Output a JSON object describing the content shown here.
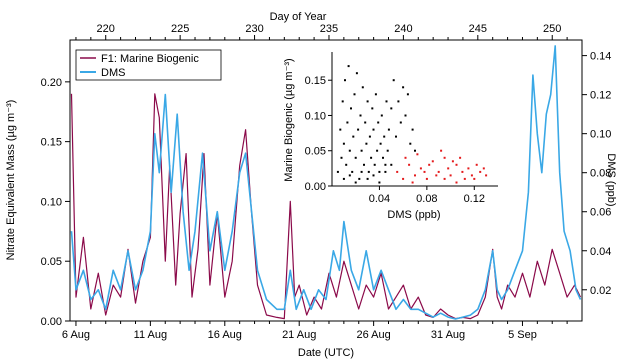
{
  "chart_data": [
    {
      "type": "line",
      "x_bottom_label": "Date (UTC)",
      "x_bottom_ticks": [
        "6 Aug",
        "11 Aug",
        "16 Aug",
        "21 Aug",
        "26 Aug",
        "31 Aug",
        "5 Sep"
      ],
      "x_top_label": "Day of Year",
      "x_top_ticks": [
        220,
        225,
        230,
        235,
        240,
        245,
        250
      ],
      "x_top_range": [
        217.6,
        252.0
      ],
      "ylabel_left": "Nitrate Equivalent Mass (µg m⁻³)",
      "ylim_left": [
        0,
        0.235
      ],
      "yticks_left": [
        "0.00",
        "0.05",
        "0.10",
        "0.15",
        "0.20"
      ],
      "ylabel_right": "DMS (ppb)",
      "ylim_right": [
        0.004,
        0.148
      ],
      "yticks_right": [
        "0.02",
        "0.04",
        "0.06",
        "0.08",
        "0.10",
        "0.12",
        "0.14"
      ],
      "legend_position": "top-left",
      "series": [
        {
          "name": "F1: Marine Biogenic",
          "axis": "left",
          "color": "#8b0a4a",
          "points": [
            [
              217.7,
              0.19
            ],
            [
              218.0,
              0.02
            ],
            [
              218.5,
              0.07
            ],
            [
              219.0,
              0.01
            ],
            [
              219.5,
              0.04
            ],
            [
              220.0,
              0.005
            ],
            [
              220.5,
              0.03
            ],
            [
              221.0,
              0.02
            ],
            [
              221.5,
              0.06
            ],
            [
              222.0,
              0.015
            ],
            [
              222.5,
              0.05
            ],
            [
              223.0,
              0.07
            ],
            [
              223.3,
              0.19
            ],
            [
              223.6,
              0.17
            ],
            [
              224.0,
              0.05
            ],
            [
              224.3,
              0.13
            ],
            [
              224.7,
              0.03
            ],
            [
              225.0,
              0.09
            ],
            [
              225.4,
              0.14
            ],
            [
              225.8,
              0.02
            ],
            [
              226.2,
              0.06
            ],
            [
              226.6,
              0.14
            ],
            [
              227.0,
              0.03
            ],
            [
              227.5,
              0.09
            ],
            [
              228.0,
              0.02
            ],
            [
              228.5,
              0.05
            ],
            [
              229.0,
              0.13
            ],
            [
              229.4,
              0.16
            ],
            [
              229.8,
              0.09
            ],
            [
              230.2,
              0.03
            ],
            [
              230.8,
              0.005
            ],
            [
              231.5,
              0.003
            ],
            [
              232.0,
              0.002
            ],
            [
              232.4,
              0.1
            ],
            [
              232.7,
              0.02
            ],
            [
              233.0,
              0.03
            ],
            [
              233.5,
              0.005
            ],
            [
              234.0,
              0.02
            ],
            [
              234.5,
              0.01
            ],
            [
              235.0,
              0.04
            ],
            [
              235.5,
              0.02
            ],
            [
              236.0,
              0.05
            ],
            [
              236.5,
              0.03
            ],
            [
              237.0,
              0.01
            ],
            [
              237.5,
              0.03
            ],
            [
              238.0,
              0.02
            ],
            [
              238.5,
              0.04
            ],
            [
              239.0,
              0.01
            ],
            [
              239.5,
              0.02
            ],
            [
              240.0,
              0.03
            ],
            [
              240.5,
              0.01
            ],
            [
              241.0,
              0.02
            ],
            [
              241.5,
              0.005
            ],
            [
              242.0,
              0.003
            ],
            [
              242.5,
              0.01
            ],
            [
              243.0,
              0.005
            ],
            [
              243.5,
              0.002
            ],
            [
              244.0,
              0.003
            ],
            [
              244.5,
              0.002
            ],
            [
              245.0,
              0.005
            ],
            [
              245.5,
              0.02
            ],
            [
              246.0,
              0.06
            ],
            [
              246.3,
              0.02
            ],
            [
              246.6,
              0.01
            ],
            [
              247.0,
              0.03
            ],
            [
              247.5,
              0.02
            ],
            [
              248.0,
              0.04
            ],
            [
              248.5,
              0.02
            ],
            [
              249.0,
              0.05
            ],
            [
              249.5,
              0.03
            ],
            [
              250.0,
              0.06
            ],
            [
              250.5,
              0.04
            ],
            [
              251.0,
              0.02
            ],
            [
              251.5,
              0.03
            ],
            [
              251.9,
              0.02
            ]
          ]
        },
        {
          "name": "DMS",
          "axis": "right",
          "color": "#3aa8e6",
          "points": [
            [
              217.7,
              0.05
            ],
            [
              218.0,
              0.02
            ],
            [
              218.5,
              0.03
            ],
            [
              219.0,
              0.015
            ],
            [
              219.5,
              0.02
            ],
            [
              220.0,
              0.01
            ],
            [
              220.5,
              0.03
            ],
            [
              221.0,
              0.02
            ],
            [
              221.5,
              0.04
            ],
            [
              222.0,
              0.02
            ],
            [
              222.5,
              0.03
            ],
            [
              223.0,
              0.05
            ],
            [
              223.3,
              0.1
            ],
            [
              223.6,
              0.08
            ],
            [
              224.0,
              0.12
            ],
            [
              224.4,
              0.07
            ],
            [
              224.8,
              0.11
            ],
            [
              225.2,
              0.06
            ],
            [
              225.6,
              0.03
            ],
            [
              226.0,
              0.05
            ],
            [
              226.5,
              0.09
            ],
            [
              227.0,
              0.04
            ],
            [
              227.5,
              0.06
            ],
            [
              228.0,
              0.03
            ],
            [
              228.5,
              0.05
            ],
            [
              229.0,
              0.08
            ],
            [
              229.4,
              0.09
            ],
            [
              229.8,
              0.06
            ],
            [
              230.2,
              0.03
            ],
            [
              230.8,
              0.015
            ],
            [
              231.5,
              0.01
            ],
            [
              232.0,
              0.01
            ],
            [
              232.4,
              0.03
            ],
            [
              232.8,
              0.01
            ],
            [
              233.3,
              0.02
            ],
            [
              233.8,
              0.01
            ],
            [
              234.3,
              0.02
            ],
            [
              234.8,
              0.015
            ],
            [
              235.3,
              0.04
            ],
            [
              235.7,
              0.03
            ],
            [
              236.0,
              0.055
            ],
            [
              236.5,
              0.03
            ],
            [
              237.0,
              0.02
            ],
            [
              237.5,
              0.04
            ],
            [
              238.0,
              0.02
            ],
            [
              238.5,
              0.03
            ],
            [
              239.0,
              0.02
            ],
            [
              239.5,
              0.01
            ],
            [
              240.0,
              0.015
            ],
            [
              240.5,
              0.01
            ],
            [
              241.0,
              0.01
            ],
            [
              241.5,
              0.008
            ],
            [
              242.0,
              0.006
            ],
            [
              242.5,
              0.008
            ],
            [
              243.0,
              0.006
            ],
            [
              243.5,
              0.005
            ],
            [
              244.0,
              0.006
            ],
            [
              244.5,
              0.007
            ],
            [
              245.0,
              0.01
            ],
            [
              245.5,
              0.02
            ],
            [
              246.0,
              0.04
            ],
            [
              246.3,
              0.02
            ],
            [
              246.6,
              0.015
            ],
            [
              247.0,
              0.02
            ],
            [
              247.5,
              0.03
            ],
            [
              248.0,
              0.04
            ],
            [
              248.4,
              0.07
            ],
            [
              248.7,
              0.13
            ],
            [
              249.0,
              0.1
            ],
            [
              249.3,
              0.08
            ],
            [
              249.6,
              0.11
            ],
            [
              249.9,
              0.12
            ],
            [
              250.2,
              0.145
            ],
            [
              250.5,
              0.08
            ],
            [
              250.8,
              0.05
            ],
            [
              251.2,
              0.04
            ],
            [
              251.6,
              0.02
            ],
            [
              251.9,
              0.015
            ]
          ]
        }
      ]
    },
    {
      "type": "scatter",
      "xlabel": "DMS (ppb)",
      "ylabel": "Marine Biogenic (µg m⁻³)",
      "xlim": [
        0.0,
        0.14
      ],
      "ylim": [
        0.0,
        0.19
      ],
      "xticks": [
        "0.04",
        "0.08",
        "0.12"
      ],
      "yticks": [
        "0.00",
        "0.05",
        "0.10",
        "0.15"
      ],
      "groups": [
        {
          "color": "#000000",
          "points": [
            [
              0.005,
              0.02
            ],
            [
              0.007,
              0.08
            ],
            [
              0.008,
              0.04
            ],
            [
              0.009,
              0.12
            ],
            [
              0.01,
              0.06
            ],
            [
              0.011,
              0.15
            ],
            [
              0.012,
              0.03
            ],
            [
              0.013,
              0.09
            ],
            [
              0.014,
              0.17
            ],
            [
              0.015,
              0.05
            ],
            [
              0.016,
              0.11
            ],
            [
              0.017,
              0.02
            ],
            [
              0.018,
              0.07
            ],
            [
              0.019,
              0.13
            ],
            [
              0.02,
              0.04
            ],
            [
              0.021,
              0.16
            ],
            [
              0.022,
              0.08
            ],
            [
              0.023,
              0.01
            ],
            [
              0.024,
              0.1
            ],
            [
              0.025,
              0.05
            ],
            [
              0.026,
              0.14
            ],
            [
              0.027,
              0.03
            ],
            [
              0.028,
              0.09
            ],
            [
              0.029,
              0.06
            ],
            [
              0.03,
              0.12
            ],
            [
              0.031,
              0.02
            ],
            [
              0.032,
              0.07
            ],
            [
              0.033,
              0.04
            ],
            [
              0.034,
              0.11
            ],
            [
              0.035,
              0.08
            ],
            [
              0.036,
              0.03
            ],
            [
              0.037,
              0.13
            ],
            [
              0.038,
              0.05
            ],
            [
              0.039,
              0.09
            ],
            [
              0.04,
              0.02
            ],
            [
              0.041,
              0.06
            ],
            [
              0.042,
              0.1
            ],
            [
              0.043,
              0.04
            ],
            [
              0.044,
              0.07
            ],
            [
              0.045,
              0.03
            ],
            [
              0.046,
              0.12
            ],
            [
              0.047,
              0.05
            ],
            [
              0.048,
              0.08
            ],
            [
              0.05,
              0.11
            ],
            [
              0.052,
              0.15
            ],
            [
              0.054,
              0.07
            ],
            [
              0.056,
              0.12
            ],
            [
              0.058,
              0.09
            ],
            [
              0.06,
              0.14
            ],
            [
              0.062,
              0.1
            ],
            [
              0.064,
              0.13
            ],
            [
              0.066,
              0.06
            ],
            [
              0.068,
              0.08
            ],
            [
              0.07,
              0.05
            ],
            [
              0.01,
              0.01
            ],
            [
              0.015,
              0.015
            ],
            [
              0.02,
              0.005
            ],
            [
              0.025,
              0.02
            ],
            [
              0.03,
              0.01
            ],
            [
              0.035,
              0.015
            ],
            [
              0.04,
              0.005
            ],
            [
              0.045,
              0.02
            ],
            [
              0.05,
              0.03
            ]
          ]
        },
        {
          "color": "#e41a1c",
          "points": [
            [
              0.055,
              0.02
            ],
            [
              0.06,
              0.01
            ],
            [
              0.065,
              0.03
            ],
            [
              0.07,
              0.015
            ],
            [
              0.075,
              0.025
            ],
            [
              0.08,
              0.01
            ],
            [
              0.085,
              0.035
            ],
            [
              0.09,
              0.02
            ],
            [
              0.095,
              0.04
            ],
            [
              0.1,
              0.015
            ],
            [
              0.105,
              0.03
            ],
            [
              0.11,
              0.02
            ],
            [
              0.115,
              0.025
            ],
            [
              0.12,
              0.01
            ],
            [
              0.125,
              0.02
            ],
            [
              0.13,
              0.015
            ],
            [
              0.072,
              0.045
            ],
            [
              0.082,
              0.03
            ],
            [
              0.092,
              0.05
            ],
            [
              0.102,
              0.035
            ],
            [
              0.112,
              0.01
            ],
            [
              0.122,
              0.03
            ],
            [
              0.062,
              0.04
            ],
            [
              0.078,
              0.02
            ],
            [
              0.088,
              0.015
            ],
            [
              0.098,
              0.025
            ],
            [
              0.108,
              0.04
            ],
            [
              0.118,
              0.015
            ],
            [
              0.128,
              0.025
            ],
            [
              0.068,
              0.005
            ],
            [
              0.095,
              0.01
            ],
            [
              0.105,
              0.005
            ]
          ]
        }
      ]
    }
  ]
}
